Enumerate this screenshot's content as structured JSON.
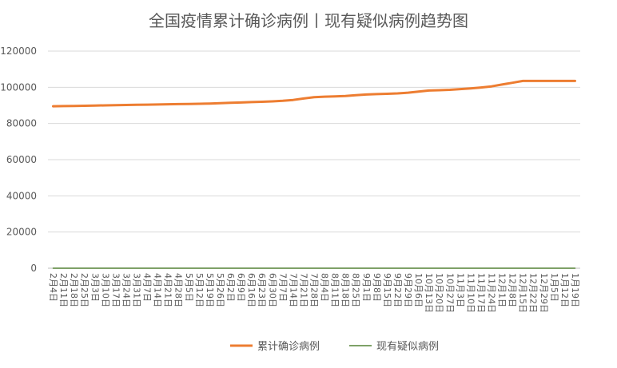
{
  "chart_data": {
    "type": "line",
    "title": "全国疫情累计确诊病例丨现有疑似病例趋势图",
    "xlabel": "",
    "ylabel": "",
    "ylim": [
      0,
      120000
    ],
    "yticks": [
      0,
      20000,
      40000,
      60000,
      80000,
      100000,
      120000
    ],
    "grid": "horizontal",
    "legend_position": "bottom",
    "categories": [
      "2月4日",
      "2月11日",
      "2月18日",
      "2月25日",
      "3月3日",
      "3月10日",
      "3月17日",
      "3月24日",
      "3月31日",
      "4月7日",
      "4月14日",
      "4月21日",
      "4月28日",
      "5月5日",
      "5月12日",
      "5月19日",
      "5月26日",
      "6月2日",
      "6月9日",
      "6月16日",
      "6月23日",
      "6月30日",
      "7月7日",
      "7月14日",
      "7月21日",
      "7月28日",
      "8月4日",
      "8月11日",
      "8月18日",
      "8月25日",
      "9月1日",
      "9月8日",
      "9月15日",
      "9月22日",
      "9月29日",
      "10月6日",
      "10月13日",
      "10月20日",
      "10月27日",
      "11月3日",
      "11月10日",
      "11月17日",
      "11月24日",
      "12月1日",
      "12月8日",
      "12月15日",
      "12月22日",
      "12月29日",
      "1月5日",
      "1月12日",
      "1月19日"
    ],
    "series": [
      {
        "name": "累计确诊病例",
        "color": "#ED7D31",
        "values": [
          89500,
          89600,
          89700,
          89800,
          89900,
          90000,
          90100,
          90200,
          90300,
          90400,
          90500,
          90600,
          90700,
          90800,
          90900,
          91000,
          91200,
          91400,
          91600,
          91800,
          92000,
          92200,
          92500,
          93000,
          93800,
          94500,
          94800,
          95000,
          95200,
          95600,
          96000,
          96200,
          96400,
          96600,
          97000,
          97600,
          98200,
          98400,
          98600,
          99000,
          99400,
          99900,
          100500,
          101500,
          102500,
          103500,
          103500,
          103500,
          103500,
          103500,
          103500
        ]
      },
      {
        "name": "现有疑似病例",
        "color": "#548235",
        "values": [
          8,
          5,
          4,
          3,
          2,
          3,
          1,
          2,
          1,
          2,
          1,
          0,
          1,
          0,
          0,
          1,
          2,
          1,
          1,
          0,
          1,
          1,
          2,
          0,
          1,
          2,
          3,
          1,
          0,
          1,
          2,
          1,
          1,
          3,
          2,
          2,
          1,
          1,
          1,
          0,
          1,
          2,
          3,
          2,
          1,
          2,
          4,
          3,
          2,
          2,
          1
        ]
      }
    ]
  }
}
